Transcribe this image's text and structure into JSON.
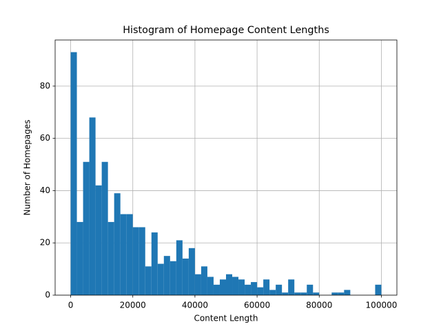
{
  "chart_data": {
    "type": "histogram",
    "title": "Histogram of Homepage Content Lengths",
    "x_label": "Content Length",
    "y_label": "Number of Homepages",
    "bins": [
      0,
      2000,
      4000,
      6000,
      8000,
      10000,
      12000,
      14000,
      16000,
      18000,
      20000,
      22000,
      24000,
      26000,
      28000,
      30000,
      32000,
      34000,
      36000,
      38000,
      40000,
      42000,
      44000,
      46000,
      48000,
      50000,
      52000,
      54000,
      56000,
      58000,
      60000,
      62000,
      64000,
      66000,
      68000,
      70000,
      72000,
      74000,
      76000,
      78000,
      80000,
      82000,
      84000,
      86000,
      88000,
      90000,
      92000,
      94000,
      96000,
      98000,
      100000
    ],
    "values": [
      93,
      28,
      51,
      68,
      42,
      51,
      28,
      39,
      31,
      31,
      26,
      26,
      11,
      24,
      12,
      15,
      13,
      21,
      14,
      18,
      8,
      11,
      7,
      4,
      6,
      8,
      7,
      6,
      4,
      5,
      3,
      6,
      2,
      4,
      1,
      6,
      1,
      1,
      4,
      1,
      0,
      0,
      1,
      1,
      2,
      0,
      0,
      0,
      0,
      4
    ],
    "color": "#1f77b4",
    "xlim": [
      -5000,
      105000
    ],
    "ylim": [
      0,
      97.65
    ],
    "xticks": [
      0,
      20000,
      40000,
      60000,
      80000,
      100000
    ],
    "yticks": [
      0,
      20,
      40,
      60,
      80
    ],
    "grid": true
  }
}
